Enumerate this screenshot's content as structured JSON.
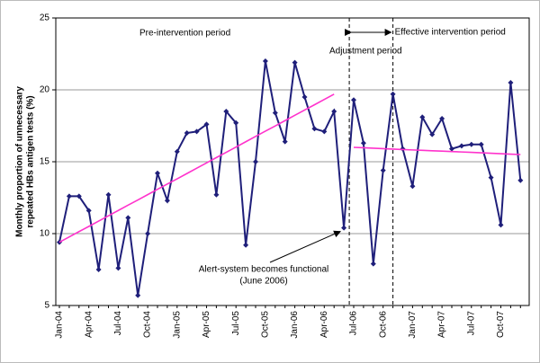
{
  "chart_data": {
    "type": "line",
    "y_label": [
      "Monthly proportion of unnecessary",
      "repeated HBs antigen tests (%)"
    ],
    "annotations": {
      "pre": "Pre-intervention period",
      "adjust": "Adjustment period",
      "effective": "Effective intervention period",
      "alert": [
        "Alert-system becomes functional",
        "(June 2006)"
      ]
    },
    "categories": [
      "Jan-04",
      null,
      null,
      "Apr-04",
      null,
      null,
      "Jul-04",
      null,
      null,
      "Oct-04",
      null,
      null,
      "Jan-05",
      null,
      null,
      "Apr-05",
      null,
      null,
      "Jul-05",
      null,
      null,
      "Oct-05",
      null,
      null,
      "Jan-06",
      null,
      null,
      "Apr-06",
      null,
      null,
      "Jul-06",
      null,
      null,
      "Oct-06",
      null,
      null,
      "Jan-07",
      null,
      null,
      "Apr-07",
      null,
      null,
      "Jul-07",
      null,
      null,
      "Oct-07",
      null,
      null
    ],
    "series": [
      {
        "color": "#1f1f7a",
        "markers": true,
        "values": [
          9.4,
          12.6,
          12.6,
          11.6,
          7.5,
          12.7,
          7.6,
          11.1,
          5.7,
          10.0,
          14.2,
          12.3,
          15.7,
          17.0,
          17.1,
          17.6,
          12.7,
          18.5,
          17.7,
          9.2,
          15.0,
          22.0,
          18.4,
          16.4,
          21.9,
          19.5,
          17.3,
          17.1,
          18.5,
          10.4,
          19.3,
          16.3,
          7.9,
          14.4,
          19.7,
          15.9,
          13.3,
          18.1,
          16.9,
          18.0,
          15.9,
          16.1,
          16.2,
          16.2,
          13.9,
          10.6,
          20.5,
          13.7
        ]
      },
      {
        "color": "#ff33cc",
        "markers": false,
        "values": [
          9.4,
          9.77,
          10.14,
          10.5,
          10.87,
          11.24,
          11.61,
          11.98,
          12.34,
          12.71,
          13.08,
          13.45,
          13.81,
          14.18,
          14.55,
          14.92,
          15.29,
          15.65,
          16.02,
          16.39,
          16.76,
          17.13,
          17.49,
          17.86,
          18.23,
          18.6,
          18.96,
          19.33,
          19.7,
          null,
          null,
          null,
          null,
          null,
          null,
          null,
          null,
          null,
          null,
          null,
          null,
          null,
          null,
          null,
          null,
          null,
          null,
          null
        ]
      },
      {
        "color": "#ff33cc",
        "markers": false,
        "values": [
          null,
          null,
          null,
          null,
          null,
          null,
          null,
          null,
          null,
          null,
          null,
          null,
          null,
          null,
          null,
          null,
          null,
          null,
          null,
          null,
          null,
          null,
          null,
          null,
          null,
          null,
          null,
          null,
          null,
          null,
          16.0,
          15.97,
          15.94,
          15.91,
          15.88,
          15.85,
          15.82,
          15.79,
          15.76,
          15.74,
          15.71,
          15.68,
          15.65,
          15.62,
          15.59,
          15.56,
          15.53,
          15.5
        ]
      }
    ],
    "ylim": [
      5,
      25
    ],
    "yticks": [
      5,
      10,
      15,
      20,
      25
    ],
    "grid": true
  }
}
